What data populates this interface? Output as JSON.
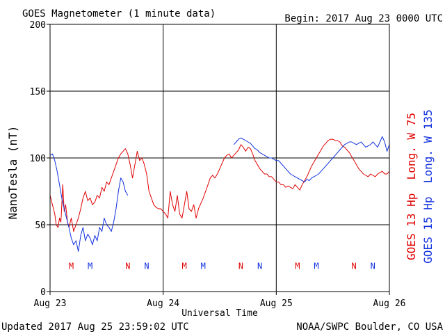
{
  "chart_data": {
    "type": "line",
    "title": "GOES Magnetometer (1 minute data)",
    "begin_label": "Begin:  2017 Aug 23 0000 UTC",
    "xlabel": "Universal Time",
    "ylabel": "NanoTesla (nT)",
    "ylim": [
      0,
      200
    ],
    "y_ticks": [
      0,
      50,
      100,
      150,
      200
    ],
    "xlim": [
      0,
      72
    ],
    "x_ticks": [
      {
        "x": 0,
        "label": "Aug 23"
      },
      {
        "x": 24,
        "label": "Aug 24"
      },
      {
        "x": 48,
        "label": "Aug 25"
      },
      {
        "x": 72,
        "label": "Aug 26"
      }
    ],
    "grid": true,
    "series": [
      {
        "name": "GOES 13 Hp  Long. W 75",
        "color": "#e00000",
        "points": [
          [
            0,
            72
          ],
          [
            0.5,
            65
          ],
          [
            1,
            58
          ],
          [
            1.3,
            50
          ],
          [
            1.7,
            48
          ],
          [
            2,
            55
          ],
          [
            2.3,
            52
          ],
          [
            2.7,
            80
          ],
          [
            3,
            60
          ],
          [
            3.3,
            65
          ],
          [
            3.7,
            52
          ],
          [
            4,
            48
          ],
          [
            4.5,
            55
          ],
          [
            5,
            45
          ],
          [
            5.5,
            50
          ],
          [
            6,
            55
          ],
          [
            6.5,
            62
          ],
          [
            7,
            70
          ],
          [
            7.5,
            75
          ],
          [
            8,
            68
          ],
          [
            8.5,
            70
          ],
          [
            9,
            65
          ],
          [
            9.5,
            67
          ],
          [
            10,
            72
          ],
          [
            10.5,
            70
          ],
          [
            11,
            78
          ],
          [
            11.5,
            75
          ],
          [
            12,
            82
          ],
          [
            12.5,
            80
          ],
          [
            13,
            85
          ],
          [
            13.5,
            90
          ],
          [
            14,
            95
          ],
          [
            14.5,
            100
          ],
          [
            15,
            103
          ],
          [
            15.5,
            105
          ],
          [
            16,
            107
          ],
          [
            16.5,
            103
          ],
          [
            17,
            95
          ],
          [
            17.5,
            85
          ],
          [
            18,
            95
          ],
          [
            18.5,
            105
          ],
          [
            19,
            98
          ],
          [
            19.5,
            100
          ],
          [
            20,
            95
          ],
          [
            20.5,
            88
          ],
          [
            21,
            75
          ],
          [
            21.5,
            70
          ],
          [
            22,
            65
          ],
          [
            22.5,
            63
          ],
          [
            23,
            62
          ],
          [
            23.5,
            62
          ],
          [
            24,
            60
          ],
          [
            24.5,
            58
          ],
          [
            25,
            55
          ],
          [
            25.5,
            75
          ],
          [
            26,
            65
          ],
          [
            26.5,
            60
          ],
          [
            27,
            72
          ],
          [
            27.5,
            58
          ],
          [
            28,
            55
          ],
          [
            28.5,
            65
          ],
          [
            29,
            75
          ],
          [
            29.5,
            62
          ],
          [
            30,
            60
          ],
          [
            30.5,
            65
          ],
          [
            31,
            55
          ],
          [
            31.5,
            62
          ],
          [
            32,
            66
          ],
          [
            32.5,
            70
          ],
          [
            33,
            75
          ],
          [
            33.5,
            80
          ],
          [
            34,
            85
          ],
          [
            34.5,
            87
          ],
          [
            35,
            85
          ],
          [
            35.5,
            88
          ],
          [
            36,
            92
          ],
          [
            36.5,
            96
          ],
          [
            37,
            100
          ],
          [
            37.5,
            102
          ],
          [
            38,
            103
          ],
          [
            38.5,
            100
          ],
          [
            39,
            102
          ],
          [
            39.5,
            104
          ],
          [
            40,
            106
          ],
          [
            40.5,
            110
          ],
          [
            41,
            108
          ],
          [
            41.5,
            105
          ],
          [
            42,
            108
          ],
          [
            42.5,
            107
          ],
          [
            43,
            103
          ],
          [
            43.5,
            98
          ],
          [
            44,
            95
          ],
          [
            44.5,
            92
          ],
          [
            45,
            90
          ],
          [
            45.5,
            88
          ],
          [
            46,
            88
          ],
          [
            46.5,
            86
          ],
          [
            47,
            86
          ],
          [
            47.5,
            84
          ],
          [
            48,
            82
          ],
          [
            48.5,
            82
          ],
          [
            49,
            80
          ],
          [
            49.5,
            80
          ],
          [
            50,
            78
          ],
          [
            50.5,
            79
          ],
          [
            51,
            78
          ],
          [
            51.5,
            77
          ],
          [
            52,
            80
          ],
          [
            52.5,
            78
          ],
          [
            53,
            76
          ],
          [
            53.5,
            80
          ],
          [
            54,
            83
          ],
          [
            54.5,
            86
          ],
          [
            55,
            90
          ],
          [
            55.5,
            94
          ],
          [
            56,
            97
          ],
          [
            56.5,
            100
          ],
          [
            57,
            103
          ],
          [
            57.5,
            106
          ],
          [
            58,
            109
          ],
          [
            58.5,
            111
          ],
          [
            59,
            113
          ],
          [
            59.5,
            114
          ],
          [
            60,
            114
          ],
          [
            60.5,
            113
          ],
          [
            61,
            113
          ],
          [
            61.5,
            112
          ],
          [
            62,
            109
          ],
          [
            62.5,
            108
          ],
          [
            63,
            106
          ],
          [
            63.5,
            104
          ],
          [
            64,
            101
          ],
          [
            64.5,
            98
          ],
          [
            65,
            95
          ],
          [
            65.5,
            92
          ],
          [
            66,
            90
          ],
          [
            66.5,
            88
          ],
          [
            67,
            87
          ],
          [
            67.5,
            86
          ],
          [
            68,
            88
          ],
          [
            68.5,
            87
          ],
          [
            69,
            86
          ],
          [
            69.5,
            88
          ],
          [
            70,
            89
          ],
          [
            70.5,
            90
          ],
          [
            71,
            88
          ],
          [
            71.5,
            88
          ],
          [
            72,
            90
          ]
        ]
      },
      {
        "name": "GOES 15 Hp  Long. W 135",
        "color": "#1030e0",
        "points": [
          [
            0,
            102
          ],
          [
            0.5,
            103
          ],
          [
            1,
            98
          ],
          [
            1.5,
            90
          ],
          [
            2,
            80
          ],
          [
            2.5,
            70
          ],
          [
            3,
            62
          ],
          [
            3.5,
            55
          ],
          [
            4,
            48
          ],
          [
            4.5,
            40
          ],
          [
            5,
            35
          ],
          [
            5.5,
            38
          ],
          [
            6,
            30
          ],
          [
            6.5,
            42
          ],
          [
            7,
            48
          ],
          [
            7.5,
            38
          ],
          [
            8,
            43
          ],
          [
            8.5,
            40
          ],
          [
            9,
            35
          ],
          [
            9.5,
            42
          ],
          [
            10,
            38
          ],
          [
            10.5,
            48
          ],
          [
            11,
            45
          ],
          [
            11.5,
            55
          ],
          [
            12,
            50
          ],
          [
            12.5,
            48
          ],
          [
            13,
            45
          ],
          [
            13.5,
            52
          ],
          [
            14,
            62
          ],
          [
            14.5,
            75
          ],
          [
            15,
            85
          ],
          [
            15.5,
            82
          ],
          [
            16,
            75
          ],
          [
            16.5,
            72
          ]
        ]
      },
      {
        "name": "",
        "color": "#1030e0",
        "points": [
          [
            39,
            110
          ],
          [
            39.5,
            112
          ],
          [
            40,
            114
          ],
          [
            40.5,
            115
          ],
          [
            41,
            114
          ],
          [
            41.5,
            113
          ],
          [
            42,
            112
          ],
          [
            42.5,
            111
          ],
          [
            43,
            109
          ],
          [
            43.5,
            107
          ],
          [
            44,
            106
          ],
          [
            44.5,
            104
          ],
          [
            45,
            103
          ],
          [
            45.5,
            102
          ],
          [
            46,
            101
          ],
          [
            46.5,
            100
          ],
          [
            47,
            100
          ],
          [
            47.5,
            99
          ],
          [
            48,
            98
          ],
          [
            48.5,
            98
          ],
          [
            49,
            96
          ],
          [
            49.5,
            94
          ],
          [
            50,
            92
          ],
          [
            50.5,
            90
          ],
          [
            51,
            88
          ],
          [
            51.5,
            87
          ],
          [
            52,
            86
          ],
          [
            52.5,
            85
          ],
          [
            53,
            84
          ],
          [
            53.5,
            83
          ],
          [
            54,
            82
          ],
          [
            54.5,
            84
          ],
          [
            55,
            83
          ],
          [
            55.5,
            85
          ],
          [
            56,
            86
          ],
          [
            56.5,
            87
          ],
          [
            57,
            88
          ],
          [
            57.5,
            90
          ],
          [
            58,
            92
          ],
          [
            58.5,
            94
          ],
          [
            59,
            96
          ],
          [
            59.5,
            98
          ],
          [
            60,
            100
          ],
          [
            60.5,
            102
          ],
          [
            61,
            104
          ],
          [
            61.5,
            106
          ],
          [
            62,
            108
          ],
          [
            62.5,
            110
          ],
          [
            63,
            111
          ],
          [
            63.5,
            112
          ],
          [
            64,
            112
          ],
          [
            64.5,
            111
          ],
          [
            65,
            110
          ],
          [
            65.5,
            111
          ],
          [
            66,
            112
          ],
          [
            66.5,
            110
          ],
          [
            67,
            108
          ],
          [
            67.5,
            109
          ],
          [
            68,
            110
          ],
          [
            68.5,
            112
          ],
          [
            69,
            110
          ],
          [
            69.5,
            108
          ],
          [
            70,
            112
          ],
          [
            70.5,
            116
          ],
          [
            71,
            112
          ],
          [
            71.5,
            105
          ],
          [
            72,
            110
          ]
        ]
      }
    ],
    "markers": [
      {
        "x": 4.5,
        "label": "M",
        "color": "#e00000"
      },
      {
        "x": 8.5,
        "label": "M",
        "color": "#1030e0"
      },
      {
        "x": 16.5,
        "label": "N",
        "color": "#e00000"
      },
      {
        "x": 20.5,
        "label": "N",
        "color": "#1030e0"
      },
      {
        "x": 28.5,
        "label": "M",
        "color": "#e00000"
      },
      {
        "x": 32.5,
        "label": "M",
        "color": "#1030e0"
      },
      {
        "x": 40.5,
        "label": "N",
        "color": "#e00000"
      },
      {
        "x": 44.5,
        "label": "N",
        "color": "#1030e0"
      },
      {
        "x": 52.5,
        "label": "M",
        "color": "#e00000"
      },
      {
        "x": 56.5,
        "label": "M",
        "color": "#1030e0"
      },
      {
        "x": 64.5,
        "label": "N",
        "color": "#e00000"
      },
      {
        "x": 68.5,
        "label": "N",
        "color": "#1030e0"
      }
    ],
    "marker_y": 17,
    "legend": [
      {
        "label": "GOES 13 Hp  Long. W 75",
        "color": "#e00000"
      },
      {
        "label": "GOES 15 Hp  Long. W 135",
        "color": "#1030e0"
      }
    ],
    "legend_placement": "right, rotated vertical"
  },
  "footer": {
    "updated": "Updated 2017 Aug 25 23:59:02 UTC",
    "source": "NOAA/SWPC Boulder, CO USA"
  }
}
